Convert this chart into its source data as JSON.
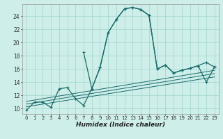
{
  "xlabel": "Humidex (Indice chaleur)",
  "bg_color": "#ceeee9",
  "grid_color": "#a8d8d2",
  "line_color": "#1a6b6b",
  "xlim": [
    -0.5,
    23.5
  ],
  "ylim": [
    9.2,
    25.8
  ],
  "xticks": [
    0,
    1,
    2,
    3,
    4,
    5,
    6,
    7,
    8,
    9,
    10,
    11,
    12,
    13,
    14,
    15,
    16,
    17,
    18,
    19,
    20,
    21,
    22,
    23
  ],
  "xtick_labels": [
    "0",
    "1",
    "2",
    "3",
    "4",
    "5",
    "6",
    "7",
    "8",
    "9",
    "10",
    "11",
    "12",
    "13",
    "14",
    "15",
    "16",
    "17",
    "18",
    "19",
    "20",
    "21",
    "22",
    "23"
  ],
  "yticks": [
    10,
    12,
    14,
    16,
    18,
    20,
    22,
    24
  ],
  "main_x": [
    0,
    1,
    2,
    3,
    4,
    5,
    6,
    7,
    8,
    9,
    10,
    11,
    12,
    13,
    14,
    15,
    16,
    17,
    18,
    19,
    20,
    21,
    22,
    23
  ],
  "main_y": [
    9.8,
    11.0,
    11.0,
    10.2,
    13.0,
    13.2,
    11.5,
    10.5,
    13.0,
    16.2,
    21.5,
    23.5,
    25.1,
    25.3,
    25.0,
    24.1,
    16.0,
    16.6,
    15.4,
    15.8,
    16.1,
    16.5,
    17.0,
    16.3
  ],
  "trend1_x": [
    0,
    23
  ],
  "trend1_y": [
    10.3,
    14.8
  ],
  "trend2_x": [
    0,
    23
  ],
  "trend2_y": [
    10.7,
    15.3
  ],
  "trend3_x": [
    0,
    23
  ],
  "trend3_y": [
    11.1,
    15.8
  ],
  "extra_x": [
    7,
    8,
    9,
    10,
    11,
    12,
    13,
    14,
    15,
    16,
    17,
    18,
    19,
    20,
    21,
    22,
    23
  ],
  "extra_y": [
    18.5,
    13.0,
    16.2,
    21.5,
    23.5,
    25.1,
    25.3,
    25.0,
    24.1,
    16.0,
    16.6,
    15.4,
    15.8,
    16.1,
    16.5,
    14.0,
    16.3
  ]
}
